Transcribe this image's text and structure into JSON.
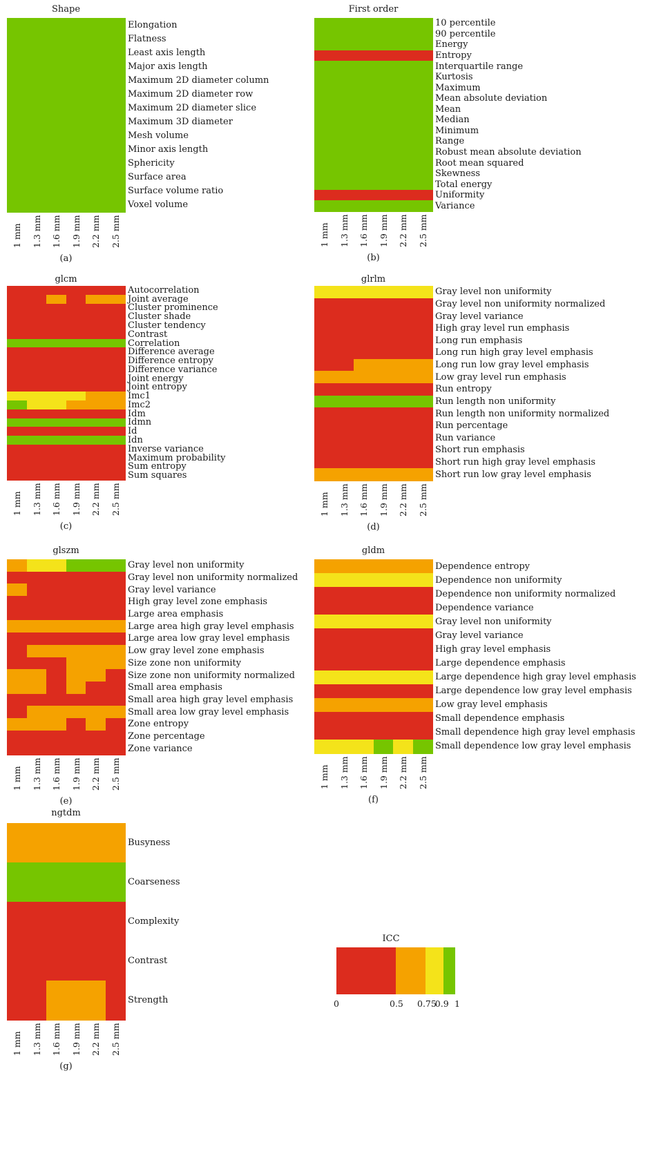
{
  "colors": {
    "red": "#dc2c1e",
    "orange": "#f5a200",
    "yellow": "#f4e31a",
    "green": "#76c500"
  },
  "columns": [
    "1 mm",
    "1.3 mm",
    "1.6 mm",
    "1.9 mm",
    "2.2 mm",
    "2.5 mm"
  ],
  "legend": {
    "title": "ICC",
    "ticks": [
      "0",
      "0.5",
      "0.75",
      "0.9",
      "1"
    ],
    "bands": [
      {
        "from": 0,
        "to": 0.5,
        "color": "red"
      },
      {
        "from": 0.5,
        "to": 0.75,
        "color": "orange"
      },
      {
        "from": 0.75,
        "to": 0.9,
        "color": "yellow"
      },
      {
        "from": 0.9,
        "to": 1,
        "color": "green"
      }
    ]
  },
  "chart_data": [
    {
      "type": "heatmap",
      "title": "Shape",
      "panel_label": "(a)",
      "rows": [
        {
          "label": "Elongation",
          "cells": "GGGGGG"
        },
        {
          "label": "Flatness",
          "cells": "GGGGGG"
        },
        {
          "label": "Least axis length",
          "cells": "GGGGGG"
        },
        {
          "label": "Major axis length",
          "cells": "GGGGGG"
        },
        {
          "label": "Maximum 2D diameter column",
          "cells": "GGGGGG"
        },
        {
          "label": "Maximum 2D diameter row",
          "cells": "GGGGGG"
        },
        {
          "label": "Maximum 2D diameter slice",
          "cells": "GGGGGG"
        },
        {
          "label": "Maximum 3D diameter",
          "cells": "GGGGGG"
        },
        {
          "label": "Mesh volume",
          "cells": "GGGGGG"
        },
        {
          "label": "Minor axis length",
          "cells": "GGGGGG"
        },
        {
          "label": "Sphericity",
          "cells": "GGGGGG"
        },
        {
          "label": "Surface area",
          "cells": "GGGGGG"
        },
        {
          "label": "Surface volume ratio",
          "cells": "GGGGGG"
        },
        {
          "label": "Voxel volume",
          "cells": "GGGGGG"
        }
      ]
    },
    {
      "type": "heatmap",
      "title": "First order",
      "panel_label": "(b)",
      "rows": [
        {
          "label": "10 percentile",
          "cells": "GGGGGG"
        },
        {
          "label": "90 percentile",
          "cells": "GGGGGG"
        },
        {
          "label": "Energy",
          "cells": "GGGGGG"
        },
        {
          "label": "Entropy",
          "cells": "RRRRRR"
        },
        {
          "label": "Interquartile range",
          "cells": "GGGGGG"
        },
        {
          "label": "Kurtosis",
          "cells": "GGGGGG"
        },
        {
          "label": "Maximum",
          "cells": "GGGGGG"
        },
        {
          "label": "Mean absolute deviation",
          "cells": "GGGGGG"
        },
        {
          "label": "Mean",
          "cells": "GGGGGG"
        },
        {
          "label": "Median",
          "cells": "GGGGGG"
        },
        {
          "label": "Minimum",
          "cells": "GGGGGG"
        },
        {
          "label": "Range",
          "cells": "GGGGGG"
        },
        {
          "label": "Robust mean absolute deviation",
          "cells": "GGGGGG"
        },
        {
          "label": "Root mean squared",
          "cells": "GGGGGG"
        },
        {
          "label": "Skewness",
          "cells": "GGGGGG"
        },
        {
          "label": "Total energy",
          "cells": "GGGGGG"
        },
        {
          "label": "Uniformity",
          "cells": "RRRRRR"
        },
        {
          "label": "Variance",
          "cells": "GGGGGG"
        }
      ]
    },
    {
      "type": "heatmap",
      "title": "glcm",
      "panel_label": "(c)",
      "rows": [
        {
          "label": "Autocorrelation",
          "cells": "RRRRRR"
        },
        {
          "label": "Joint average",
          "cells": "RROROO"
        },
        {
          "label": "Cluster prominence",
          "cells": "RRRRRR"
        },
        {
          "label": "Cluster shade",
          "cells": "RRRRRR"
        },
        {
          "label": "Cluster tendency",
          "cells": "RRRRRR"
        },
        {
          "label": "Contrast",
          "cells": "RRRRRR"
        },
        {
          "label": "Correlation",
          "cells": "GGGGGG"
        },
        {
          "label": "Difference average",
          "cells": "RRRRRR"
        },
        {
          "label": "Difference entropy",
          "cells": "RRRRRR"
        },
        {
          "label": "Difference variance",
          "cells": "RRRRRR"
        },
        {
          "label": "Joint energy",
          "cells": "RRRRRR"
        },
        {
          "label": "Joint entropy",
          "cells": "RRRRRR"
        },
        {
          "label": "Imc1",
          "cells": "YYYYOO"
        },
        {
          "label": "Imc2",
          "cells": "GYYOOO"
        },
        {
          "label": "Idm",
          "cells": "RRRRRR"
        },
        {
          "label": "Idmn",
          "cells": "GGGGGG"
        },
        {
          "label": "Id",
          "cells": "RRRRRR"
        },
        {
          "label": "Idn",
          "cells": "GGGGGG"
        },
        {
          "label": "Inverse variance",
          "cells": "RRRRRR"
        },
        {
          "label": "Maximum probability",
          "cells": "RRRRRR"
        },
        {
          "label": "Sum entropy",
          "cells": "RRRRRR"
        },
        {
          "label": "Sum squares",
          "cells": "RRRRRR"
        }
      ]
    },
    {
      "type": "heatmap",
      "title": "glrlm",
      "panel_label": "(d)",
      "rows": [
        {
          "label": "Gray level non uniformity",
          "cells": "YYYYYY"
        },
        {
          "label": "Gray level non uniformity normalized",
          "cells": "RRRRRR"
        },
        {
          "label": "Gray level variance",
          "cells": "RRRRRR"
        },
        {
          "label": "High gray level run emphasis",
          "cells": "RRRRRR"
        },
        {
          "label": "Long run emphasis",
          "cells": "RRRRRR"
        },
        {
          "label": "Long run high gray level emphasis",
          "cells": "RRRRRR"
        },
        {
          "label": "Long run low gray level emphasis",
          "cells": "RROOOO"
        },
        {
          "label": "Low gray level run emphasis",
          "cells": "OOOOOO"
        },
        {
          "label": "Run entropy",
          "cells": "RRRRRR"
        },
        {
          "label": "Run length non uniformity",
          "cells": "GGGGGG"
        },
        {
          "label": "Run length non uniformity normalized",
          "cells": "RRRRRR"
        },
        {
          "label": "Run percentage",
          "cells": "RRRRRR"
        },
        {
          "label": "Run variance",
          "cells": "RRRRRR"
        },
        {
          "label": "Short run emphasis",
          "cells": "RRRRRR"
        },
        {
          "label": "Short run high gray level emphasis",
          "cells": "RRRRRR"
        },
        {
          "label": "Short run low gray level emphasis",
          "cells": "OOOOOO"
        }
      ]
    },
    {
      "type": "heatmap",
      "title": "glszm",
      "panel_label": "(e)",
      "rows": [
        {
          "label": "Gray level non uniformity",
          "cells": "OYYGGG"
        },
        {
          "label": "Gray level non uniformity normalized",
          "cells": "RRRRRR"
        },
        {
          "label": "Gray level variance",
          "cells": "ORRRRR"
        },
        {
          "label": "High gray level zone emphasis",
          "cells": "RRRRRR"
        },
        {
          "label": "Large area emphasis",
          "cells": "RRRRRR"
        },
        {
          "label": "Large area high gray level emphasis",
          "cells": "OOOOOO"
        },
        {
          "label": "Large area low gray level emphasis",
          "cells": "RRRRRR"
        },
        {
          "label": "Low gray level zone emphasis",
          "cells": "ROOOOO"
        },
        {
          "label": "Size zone non uniformity",
          "cells": "RRROOO"
        },
        {
          "label": "Size zone non uniformity normalized",
          "cells": "OOROOR"
        },
        {
          "label": "Small area emphasis",
          "cells": "OORORR"
        },
        {
          "label": "Small area high gray level emphasis",
          "cells": "RRRRRR"
        },
        {
          "label": "Small area low gray level emphasis",
          "cells": "ROOOOO"
        },
        {
          "label": "Zone entropy",
          "cells": "OOOROR"
        },
        {
          "label": "Zone percentage",
          "cells": "RRRRRR"
        },
        {
          "label": "Zone variance",
          "cells": "RRRRRR"
        }
      ]
    },
    {
      "type": "heatmap",
      "title": "gldm",
      "panel_label": "(f)",
      "rows": [
        {
          "label": "Dependence entropy",
          "cells": "OOOOOO"
        },
        {
          "label": "Dependence non uniformity",
          "cells": "YYYYYY"
        },
        {
          "label": "Dependence non uniformity normalized",
          "cells": "RRRRRR"
        },
        {
          "label": "Dependence variance",
          "cells": "RRRRRR"
        },
        {
          "label": "Gray level non uniformity",
          "cells": "YYYYYY"
        },
        {
          "label": "Gray level variance",
          "cells": "RRRRRR"
        },
        {
          "label": "High gray level emphasis",
          "cells": "RRRRRR"
        },
        {
          "label": "Large dependence emphasis",
          "cells": "RRRRRR"
        },
        {
          "label": "Large dependence high gray level emphasis",
          "cells": "YYYYYY"
        },
        {
          "label": "Large dependence low gray level emphasis",
          "cells": "RRRRRR"
        },
        {
          "label": "Low gray level emphasis",
          "cells": "OOOOOO"
        },
        {
          "label": "Small dependence emphasis",
          "cells": "RRRRRR"
        },
        {
          "label": "Small dependence high gray level emphasis",
          "cells": "RRRRRR"
        },
        {
          "label": "Small dependence low gray level emphasis",
          "cells": "YYYGYG"
        }
      ]
    },
    {
      "type": "heatmap",
      "title": "ngtdm",
      "panel_label": "(g)",
      "rows": [
        {
          "label": "Busyness",
          "cells": "OOOOOO"
        },
        {
          "label": "Coarseness",
          "cells": "GGGGGG"
        },
        {
          "label": "Complexity",
          "cells": "RRRRRR"
        },
        {
          "label": "Contrast",
          "cells": "RRRRRR"
        },
        {
          "label": "Strength",
          "cells": "RROOOR"
        }
      ]
    }
  ]
}
